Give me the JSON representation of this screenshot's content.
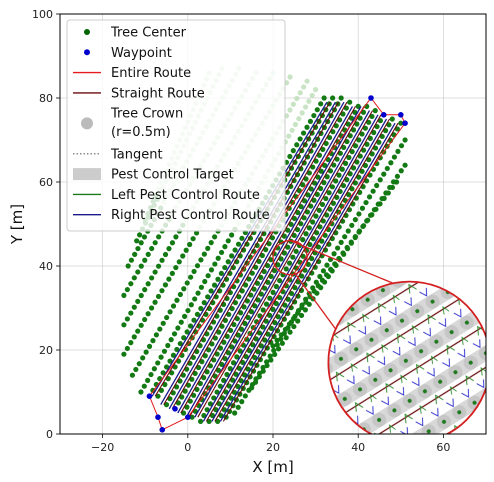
{
  "chart_data": {
    "type": "scatter",
    "title": "",
    "xlabel": "X [m]",
    "ylabel": "Y [m]",
    "xlim": [
      -30,
      70
    ],
    "ylim": [
      0,
      100
    ],
    "xticks": [
      -20,
      0,
      20,
      40,
      60
    ],
    "yticks": [
      0,
      20,
      40,
      60,
      80,
      100
    ],
    "grid": true,
    "legend_position": "upper-left",
    "legend": [
      {
        "label": "Tree Center",
        "kind": "marker",
        "color": "#006400"
      },
      {
        "label": "Waypoint",
        "kind": "marker",
        "color": "#0000cc"
      },
      {
        "label": "Entire Route",
        "kind": "line",
        "color": "#e41a1c"
      },
      {
        "label": "Straight Route",
        "kind": "line",
        "color": "#6b0a0a"
      },
      {
        "label": "Tree Crown",
        "label2": "(r=0.5m)",
        "kind": "circle",
        "color": "#bbbbbb"
      },
      {
        "label": "Tangent",
        "kind": "dotted",
        "color": "#666666"
      },
      {
        "label": "Pest Control Target",
        "kind": "patch",
        "color": "#cccccc"
      },
      {
        "label": "Left Pest Control Route",
        "kind": "line",
        "color": "#1a7a1a"
      },
      {
        "label": "Right Pest Control Route",
        "kind": "line",
        "color": "#1a1a8c"
      }
    ],
    "series": [
      {
        "name": "Tree Center",
        "field": {
          "direction_deg": 60,
          "row_spacing": 2.0,
          "tree_spacing": 1.6,
          "rows": [
            {
              "start": [
                -9,
                9
              ],
              "end": [
                32,
                80
              ],
              "faded_from": 1.0
            },
            {
              "start": [
                -7,
                9
              ],
              "end": [
                34,
                80
              ],
              "faded_from": 1.0
            },
            {
              "start": [
                -5,
                7
              ],
              "end": [
                36,
                80
              ],
              "faded_from": 1.0
            },
            {
              "start": [
                -3,
                6
              ],
              "end": [
                38,
                79
              ],
              "faded_from": 1.0
            },
            {
              "start": [
                -1,
                5
              ],
              "end": [
                40,
                78
              ],
              "faded_from": 1.0
            },
            {
              "start": [
                1,
                4
              ],
              "end": [
                42,
                78
              ],
              "faded_from": 1.0
            },
            {
              "start": [
                3,
                3
              ],
              "end": [
                44,
                77
              ],
              "faded_from": 1.0
            },
            {
              "start": [
                5,
                3
              ],
              "end": [
                46,
                76
              ],
              "faded_from": 1.0
            },
            {
              "start": [
                7,
                3
              ],
              "end": [
                48,
                75
              ],
              "faded_from": 1.0
            },
            {
              "start": [
                9,
                4
              ],
              "end": [
                50,
                74
              ],
              "faded_from": 1.0
            },
            {
              "start": [
                11,
                5
              ],
              "end": [
                51,
                70
              ],
              "faded_from": 1.0
            },
            {
              "start": [
                15,
                11
              ],
              "end": [
                51,
                64
              ],
              "faded_from": 1.0
            },
            {
              "start": [
                20,
                21
              ],
              "end": [
                49,
                60
              ],
              "faded_from": 1.0
            },
            {
              "start": [
                -11,
                10
              ],
              "end": [
                30,
                82
              ],
              "faded_from": 0.55
            },
            {
              "start": [
                -13,
                14
              ],
              "end": [
                28,
                84
              ],
              "faded_from": 0.5
            },
            {
              "start": [
                -15,
                19
              ],
              "end": [
                24,
                85
              ],
              "faded_from": 0.45
            },
            {
              "start": [
                -15,
                26
              ],
              "end": [
                20,
                86
              ],
              "faded_from": 0.4
            },
            {
              "start": [
                -15,
                33
              ],
              "end": [
                16,
                86
              ],
              "faded_from": 0.35
            },
            {
              "start": [
                -14,
                40
              ],
              "end": [
                12,
                87
              ],
              "faded_from": 0.3
            },
            {
              "start": [
                -12,
                46
              ],
              "end": [
                8,
                87
              ],
              "faded_from": 0.25
            },
            {
              "start": [
                -10,
                51
              ],
              "end": [
                5,
                86
              ],
              "faded_from": 0.2
            }
          ]
        }
      },
      {
        "name": "Waypoint",
        "points": [
          [
            -9,
            9
          ],
          [
            -7,
            4
          ],
          [
            -6,
            1
          ],
          [
            -3,
            6
          ],
          [
            0,
            4
          ],
          [
            43,
            80
          ],
          [
            46,
            76
          ],
          [
            50,
            76
          ],
          [
            51,
            74
          ]
        ]
      },
      {
        "name": "Entire Route",
        "points": [
          [
            -9,
            9
          ],
          [
            -7,
            4
          ],
          [
            -6,
            1
          ],
          [
            0,
            4
          ],
          [
            51,
            74
          ],
          [
            50,
            76
          ],
          [
            46,
            76
          ],
          [
            43,
            80
          ],
          [
            -9,
            9
          ]
        ]
      },
      {
        "name": "Straight Route",
        "lanes": [
          {
            "start": [
              -8,
              9
            ],
            "end": [
              33,
              79
            ]
          },
          {
            "start": [
              -6,
              7
            ],
            "end": [
              35,
              79
            ]
          },
          {
            "start": [
              -4,
              6
            ],
            "end": [
              37,
              79
            ]
          },
          {
            "start": [
              -2,
              5
            ],
            "end": [
              39,
              78
            ]
          },
          {
            "start": [
              0,
              4
            ],
            "end": [
              41,
              78
            ]
          },
          {
            "start": [
              2,
              4
            ],
            "end": [
              43,
              77
            ]
          },
          {
            "start": [
              4,
              3
            ],
            "end": [
              45,
              76
            ]
          },
          {
            "start": [
              6,
              3
            ],
            "end": [
              47,
              75
            ]
          },
          {
            "start": [
              8,
              3
            ],
            "end": [
              49,
              74
            ]
          }
        ]
      }
    ],
    "inset": {
      "zoom_region_center": [
        24,
        42
      ],
      "zoom_region_radius": 4,
      "inset_center": [
        52,
        17
      ],
      "inset_radius": 19,
      "outline_color": "#d42020"
    }
  }
}
